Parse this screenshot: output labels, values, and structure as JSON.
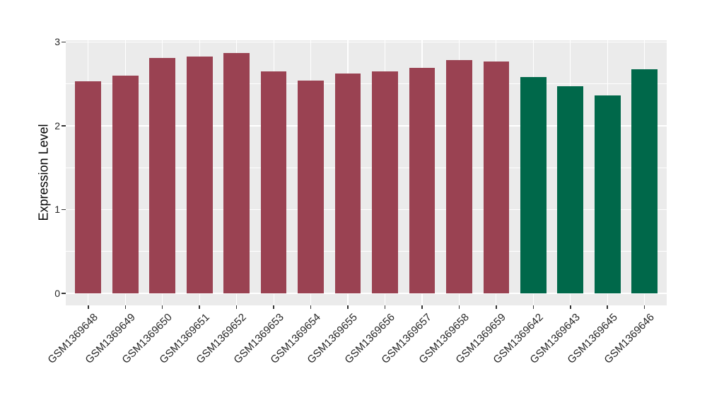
{
  "chart_data": {
    "type": "bar",
    "title": "",
    "xlabel": "",
    "ylabel": "Expression Level",
    "categories": [
      "GSM1369648",
      "GSM1369649",
      "GSM1369650",
      "GSM1369651",
      "GSM1369652",
      "GSM1369653",
      "GSM1369654",
      "GSM1369655",
      "GSM1369656",
      "GSM1369657",
      "GSM1369658",
      "GSM1369659",
      "GSM1369642",
      "GSM1369643",
      "GSM1369645",
      "GSM1369646"
    ],
    "values": [
      2.53,
      2.6,
      2.81,
      2.83,
      2.87,
      2.65,
      2.54,
      2.62,
      2.65,
      2.69,
      2.78,
      2.77,
      2.58,
      2.47,
      2.36,
      2.67
    ],
    "bar_colors": [
      "#9A4252",
      "#9A4252",
      "#9A4252",
      "#9A4252",
      "#9A4252",
      "#9A4252",
      "#9A4252",
      "#9A4252",
      "#9A4252",
      "#9A4252",
      "#9A4252",
      "#9A4252",
      "#00684A",
      "#00684A",
      "#00684A",
      "#00684A"
    ],
    "ylim": [
      0,
      3
    ],
    "yticks": [
      0,
      1,
      2,
      3
    ],
    "ytick_labels": [
      "0",
      "1",
      "2",
      "3"
    ],
    "minor_yticks": [
      0.5,
      1.5,
      2.5
    ],
    "grid": "on",
    "legend_position": "none",
    "style": {
      "panel_bg": "#EBEBEB",
      "grid_color": "#FFFFFF",
      "tick_color": "#333333",
      "axis_text_color": "#262626",
      "bar_red": "#9A4252",
      "bar_green": "#00684A"
    }
  }
}
